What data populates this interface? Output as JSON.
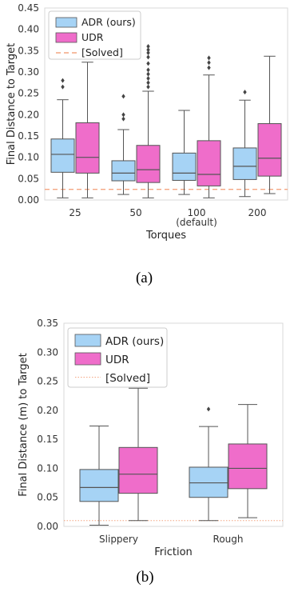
{
  "chart_data": [
    {
      "id": "a",
      "type": "box",
      "caption": "(a)",
      "xlabel": "Torques",
      "ylabel": "Final Distance to Target",
      "ylim": [
        0,
        0.45
      ],
      "yticks": [
        "0.00",
        "0.05",
        "0.10",
        "0.15",
        "0.20",
        "0.25",
        "0.30",
        "0.35",
        "0.40",
        "0.45"
      ],
      "categories": [
        "25",
        "50",
        "100",
        "200"
      ],
      "category_sublabels": [
        "",
        "",
        "(default)",
        ""
      ],
      "legend": {
        "position": "top-left",
        "entries": [
          "ADR (ours)",
          "UDR",
          "[Solved]"
        ]
      },
      "solved_threshold": 0.025,
      "colors": {
        "ADR": "#a6d3f5",
        "UDR": "#ef6dca",
        "solved": "#f4a582"
      },
      "series": [
        {
          "name": "ADR (ours)",
          "boxes": [
            {
              "whislo": 0.005,
              "q1": 0.065,
              "med": 0.107,
              "q3": 0.143,
              "whishi": 0.235,
              "fliers": [
                0.265,
                0.28
              ]
            },
            {
              "whislo": 0.013,
              "q1": 0.045,
              "med": 0.063,
              "q3": 0.092,
              "whishi": 0.165,
              "fliers": [
                0.19,
                0.2,
                0.243
              ]
            },
            {
              "whislo": 0.013,
              "q1": 0.046,
              "med": 0.063,
              "q3": 0.11,
              "whishi": 0.21,
              "fliers": []
            },
            {
              "whislo": 0.008,
              "q1": 0.048,
              "med": 0.079,
              "q3": 0.122,
              "whishi": 0.234,
              "fliers": [
                0.253
              ]
            }
          ]
        },
        {
          "name": "UDR",
          "boxes": [
            {
              "whislo": 0.005,
              "q1": 0.063,
              "med": 0.1,
              "q3": 0.181,
              "whishi": 0.323,
              "fliers": []
            },
            {
              "whislo": 0.005,
              "q1": 0.041,
              "med": 0.071,
              "q3": 0.128,
              "whishi": 0.255,
              "fliers": [
                0.265,
                0.275,
                0.285,
                0.295,
                0.305,
                0.32,
                0.335,
                0.345,
                0.352,
                0.36
              ]
            },
            {
              "whislo": 0.005,
              "q1": 0.033,
              "med": 0.06,
              "q3": 0.139,
              "whishi": 0.293,
              "fliers": [
                0.31,
                0.322,
                0.333
              ]
            },
            {
              "whislo": 0.015,
              "q1": 0.056,
              "med": 0.098,
              "q3": 0.179,
              "whishi": 0.337,
              "fliers": []
            }
          ]
        }
      ]
    },
    {
      "id": "b",
      "type": "box",
      "caption": "(b)",
      "xlabel": "Friction",
      "ylabel": "Final Distance (m) to Target",
      "ylim": [
        0,
        0.35
      ],
      "yticks": [
        "0.00",
        "0.05",
        "0.10",
        "0.15",
        "0.20",
        "0.25",
        "0.30",
        "0.35"
      ],
      "categories": [
        "Slippery",
        "Rough"
      ],
      "category_sublabels": [
        "",
        ""
      ],
      "legend": {
        "position": "top-left",
        "entries": [
          "ADR (ours)",
          "UDR",
          "[Solved]"
        ]
      },
      "solved_threshold": 0.01,
      "colors": {
        "ADR": "#a6d3f5",
        "UDR": "#ef6dca",
        "solved": "#f4a582"
      },
      "series": [
        {
          "name": "ADR (ours)",
          "boxes": [
            {
              "whislo": 0.002,
              "q1": 0.043,
              "med": 0.067,
              "q3": 0.098,
              "whishi": 0.173,
              "fliers": []
            },
            {
              "whislo": 0.01,
              "q1": 0.05,
              "med": 0.075,
              "q3": 0.102,
              "whishi": 0.172,
              "fliers": [
                0.202
              ]
            }
          ]
        },
        {
          "name": "UDR",
          "boxes": [
            {
              "whislo": 0.01,
              "q1": 0.057,
              "med": 0.09,
              "q3": 0.136,
              "whishi": 0.238,
              "fliers": []
            },
            {
              "whislo": 0.015,
              "q1": 0.065,
              "med": 0.1,
              "q3": 0.142,
              "whishi": 0.21,
              "fliers": []
            }
          ]
        }
      ]
    }
  ]
}
